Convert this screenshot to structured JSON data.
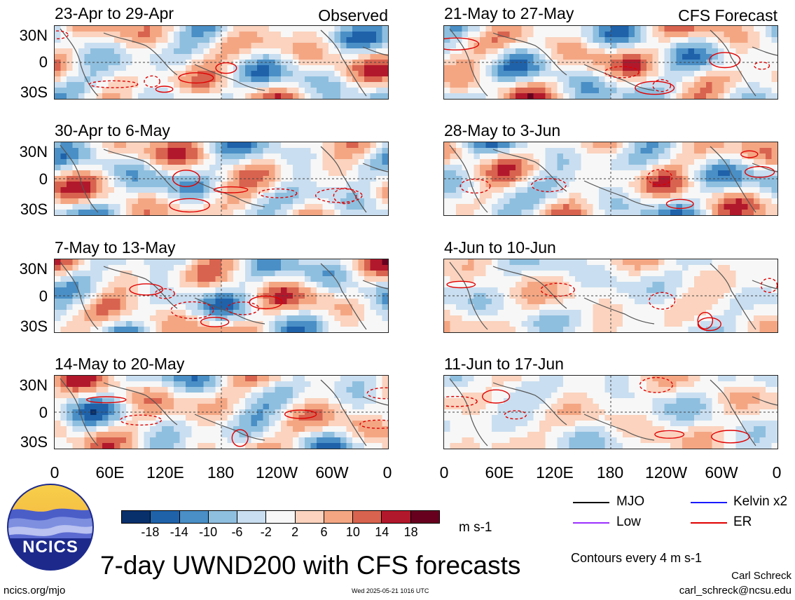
{
  "columns": [
    {
      "corner_label": "Observed",
      "panels": [
        {
          "title": "23-Apr to 29-Apr"
        },
        {
          "title": "30-Apr to 6-May"
        },
        {
          "title": "7-May to 13-May"
        },
        {
          "title": "14-May to 20-May"
        }
      ]
    },
    {
      "corner_label": "CFS Forecast",
      "panels": [
        {
          "title": "21-May to 27-May"
        },
        {
          "title": "28-May to 3-Jun"
        },
        {
          "title": "4-Jun to 10-Jun"
        },
        {
          "title": "11-Jun to 17-Jun"
        }
      ]
    }
  ],
  "lat_labels": [
    "30N",
    "0",
    "30S"
  ],
  "lon_labels": [
    "0",
    "60E",
    "120E",
    "180",
    "120W",
    "60W",
    "0"
  ],
  "colorbar": {
    "colors": [
      "#08306b",
      "#1f62aa",
      "#4a8fc6",
      "#8fbfdf",
      "#c9def0",
      "#f7f7f7",
      "#fbd3be",
      "#f4a683",
      "#d8634f",
      "#b2182b",
      "#67001f"
    ],
    "labels": [
      "-18",
      "-14",
      "-10",
      "-6",
      "-2",
      "2",
      "6",
      "10",
      "14",
      "18"
    ],
    "unit": "m s-1"
  },
  "legend": {
    "items": [
      {
        "label": "MJO",
        "color": "#000000"
      },
      {
        "label": "Kelvin x2",
        "color": "#1a1aff"
      },
      {
        "label": "Low",
        "color": "#9b30ff"
      },
      {
        "label": "ER",
        "color": "#e00000"
      }
    ],
    "contour_note": "Contours every 4 m s-1"
  },
  "logo_text": "NCICS",
  "main_title": "7-day UWND200 with CFS forecasts",
  "footer": {
    "url": "ncics.org/mjo",
    "timestamp": "Wed 2025-05-21 1016 UTC",
    "author": "Carl Schreck",
    "email": "carl_schreck@ncsu.edu"
  }
}
